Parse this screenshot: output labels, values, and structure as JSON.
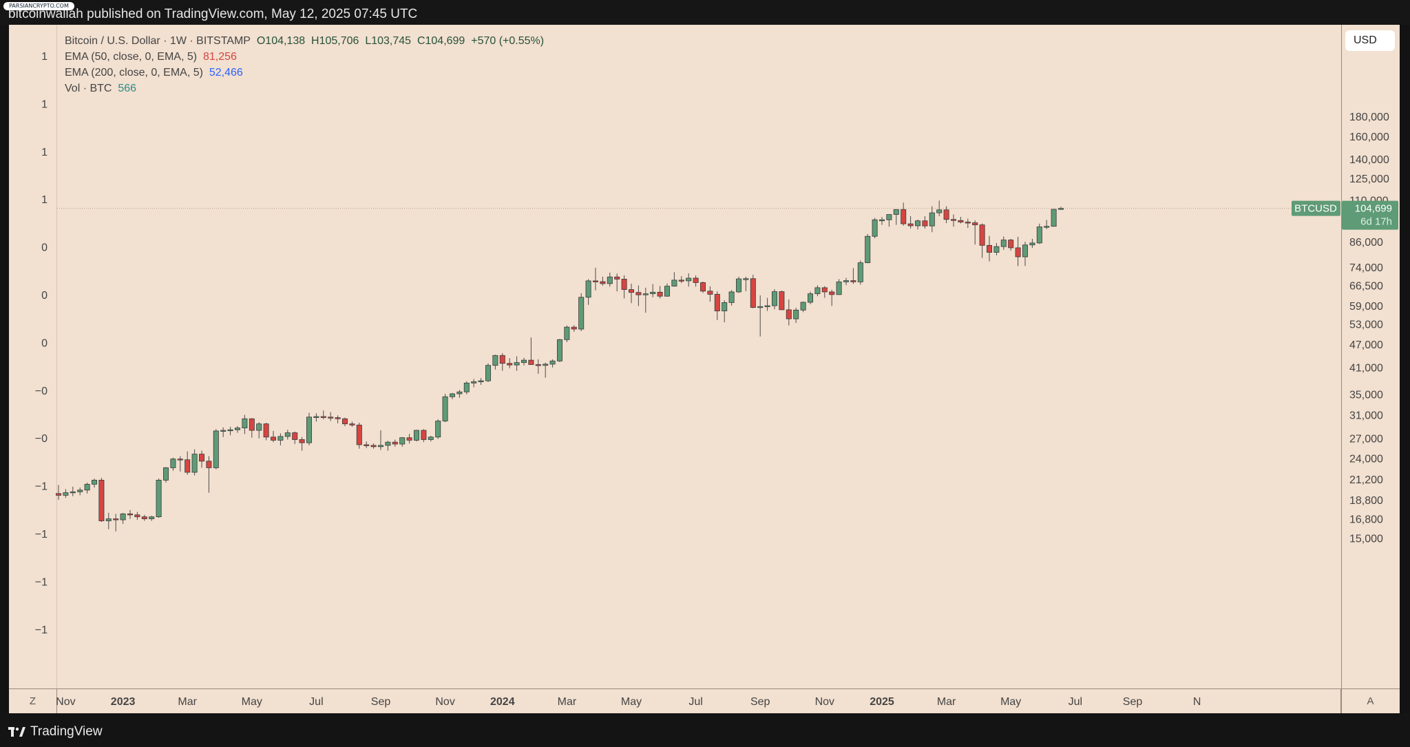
{
  "header": {
    "published": "bitcoinwallah published on TradingView.com, May 12, 2025 07:45 UTC",
    "watermark": "PARSIANCRYPTO.COM"
  },
  "legend": {
    "symbol_line": "Bitcoin / U.S. Dollar · 1W · BITSTAMP",
    "ohlc": "O104,138  H105,706  L103,745  C104,699  +570 (+0.55%)",
    "ema50_label": "EMA (50, close, 0, EMA, 5)",
    "ema50_value": "81,256",
    "ema200_label": "EMA (200, close, 0, EMA, 5)",
    "ema200_value": "52,466",
    "vol_label": "Vol · BTC",
    "vol_value": "566"
  },
  "controls": {
    "currency_button": "USD",
    "left_button": "Z",
    "right_button": "A"
  },
  "footer": {
    "brand": "TradingView"
  },
  "price_tag": {
    "symbol": "BTCUSD",
    "price": "104,699",
    "countdown": "6d 17h"
  },
  "colors": {
    "background": "#f2e0d0",
    "up": "#5e9b76",
    "down": "#d64541",
    "tag": "#5e9b76"
  },
  "chart_data": {
    "type": "candlestick",
    "timeframe": "1W",
    "scale": "log",
    "y_ticks": [
      180000,
      160000,
      140000,
      125000,
      110000,
      86000,
      74000,
      66500,
      59000,
      53000,
      47000,
      41000,
      35000,
      31000,
      27000,
      24000,
      21200,
      18800,
      16800,
      15000
    ],
    "y_tick_labels": [
      "180,000",
      "160,000",
      "140,000",
      "125,000",
      "110,000",
      "86,000",
      "74,000",
      "66,500",
      "59,000",
      "53,000",
      "47,000",
      "41,000",
      "35,000",
      "31,000",
      "27,000",
      "24,000",
      "21,200",
      "18,800",
      "16,800",
      "15,000"
    ],
    "left_axis_labels": [
      "1",
      "1",
      "1",
      "1",
      "0",
      "0",
      "0",
      "−0",
      "−0",
      "−1",
      "−1",
      "−1",
      "−1"
    ],
    "x_labels": [
      "Nov",
      "2023",
      "Mar",
      "May",
      "Jul",
      "Sep",
      "Nov",
      "2024",
      "Mar",
      "May",
      "Jul",
      "Sep",
      "Nov",
      "2025",
      "Mar",
      "May",
      "Jul",
      "Sep",
      "N"
    ],
    "x_label_week_index": [
      1,
      9,
      18,
      27,
      36,
      45,
      54,
      62,
      71,
      80,
      89,
      98,
      107,
      115,
      124,
      133,
      142,
      150,
      159
    ],
    "bold_x_labels": [
      "2023",
      "2024",
      "2025"
    ],
    "candles_ohlc": [
      [
        19500,
        20500,
        18800,
        19300
      ],
      [
        19300,
        20000,
        19000,
        19600
      ],
      [
        19600,
        20300,
        19200,
        19700
      ],
      [
        19700,
        20200,
        19300,
        19900
      ],
      [
        19900,
        20800,
        19500,
        20600
      ],
      [
        20600,
        21300,
        20200,
        21100
      ],
      [
        21100,
        21400,
        16500,
        16600
      ],
      [
        16600,
        17400,
        15800,
        16800
      ],
      [
        16800,
        17300,
        15600,
        16700
      ],
      [
        16700,
        17400,
        16300,
        17300
      ],
      [
        17300,
        17700,
        16800,
        17200
      ],
      [
        17200,
        17500,
        16700,
        17000
      ],
      [
        17000,
        17200,
        16600,
        16800
      ],
      [
        16800,
        17100,
        16600,
        17000
      ],
      [
        17000,
        21300,
        16900,
        21100
      ],
      [
        21100,
        22800,
        20800,
        22700
      ],
      [
        22700,
        24100,
        22300,
        23900
      ],
      [
        23900,
        24300,
        22200,
        23800
      ],
      [
        23800,
        25000,
        21800,
        22100
      ],
      [
        22100,
        25300,
        21700,
        24600
      ],
      [
        24600,
        25100,
        22700,
        23600
      ],
      [
        23600,
        24300,
        19600,
        22700
      ],
      [
        22700,
        28500,
        22500,
        28200
      ],
      [
        28200,
        28800,
        27200,
        28300
      ],
      [
        28300,
        28900,
        27500,
        28400
      ],
      [
        28400,
        29000,
        27900,
        28700
      ],
      [
        28700,
        31000,
        27700,
        30300
      ],
      [
        30300,
        30400,
        27100,
        28300
      ],
      [
        28300,
        29700,
        27000,
        29400
      ],
      [
        29400,
        29600,
        26700,
        27200
      ],
      [
        27200,
        28200,
        26400,
        26700
      ],
      [
        26700,
        27800,
        25900,
        27300
      ],
      [
        27300,
        28400,
        26800,
        27900
      ],
      [
        27900,
        28100,
        26100,
        26800
      ],
      [
        26800,
        27200,
        25100,
        26300
      ],
      [
        26300,
        31400,
        25900,
        30600
      ],
      [
        30600,
        31300,
        29800,
        30700
      ],
      [
        30700,
        31800,
        30200,
        30600
      ],
      [
        30600,
        31500,
        29900,
        30500
      ],
      [
        30500,
        30900,
        29500,
        30300
      ],
      [
        30300,
        30500,
        29000,
        29400
      ],
      [
        29400,
        29800,
        28900,
        29200
      ],
      [
        29200,
        29600,
        25400,
        26000
      ],
      [
        26000,
        26500,
        25500,
        25900
      ],
      [
        25900,
        26200,
        25400,
        25700
      ],
      [
        25700,
        28300,
        25200,
        25900
      ],
      [
        25900,
        26600,
        25100,
        26400
      ],
      [
        26400,
        26800,
        25700,
        26100
      ],
      [
        26100,
        27200,
        25700,
        27100
      ],
      [
        27100,
        27700,
        26200,
        26700
      ],
      [
        26700,
        28400,
        26500,
        28300
      ],
      [
        28300,
        28500,
        26400,
        26800
      ],
      [
        26800,
        27400,
        26500,
        27200
      ],
      [
        27200,
        30200,
        26900,
        29900
      ],
      [
        29900,
        35100,
        29700,
        34500
      ],
      [
        34500,
        35300,
        34000,
        35100
      ],
      [
        35100,
        35900,
        34300,
        35500
      ],
      [
        35500,
        37800,
        35000,
        37400
      ],
      [
        37400,
        38300,
        36500,
        37700
      ],
      [
        37700,
        38500,
        37000,
        37900
      ],
      [
        37900,
        42000,
        37600,
        41500
      ],
      [
        41500,
        44200,
        40500,
        44000
      ],
      [
        44000,
        44600,
        40200,
        42000
      ],
      [
        42000,
        43300,
        40800,
        41600
      ],
      [
        41600,
        43800,
        40200,
        42200
      ],
      [
        42200,
        43400,
        41500,
        42800
      ],
      [
        42800,
        48900,
        41800,
        41700
      ],
      [
        41700,
        43000,
        39500,
        41500
      ],
      [
        41500,
        42200,
        38600,
        41800
      ],
      [
        41800,
        43000,
        41000,
        42600
      ],
      [
        42600,
        48500,
        42300,
        48300
      ],
      [
        48300,
        52500,
        47600,
        52000
      ],
      [
        52000,
        52600,
        50600,
        51400
      ],
      [
        51400,
        63500,
        50800,
        62000
      ],
      [
        62000,
        69000,
        59300,
        68300
      ],
      [
        68300,
        73800,
        64600,
        68000
      ],
      [
        68000,
        70000,
        66400,
        67200
      ],
      [
        67200,
        71700,
        66000,
        69900
      ],
      [
        69900,
        71300,
        64200,
        69000
      ],
      [
        69000,
        70600,
        61600,
        64900
      ],
      [
        64900,
        67200,
        59900,
        63800
      ],
      [
        63800,
        66500,
        58900,
        62900
      ],
      [
        62900,
        65600,
        56600,
        63300
      ],
      [
        63300,
        67000,
        62000,
        63900
      ],
      [
        63900,
        66300,
        61600,
        62400
      ],
      [
        62400,
        67300,
        62200,
        66200
      ],
      [
        66200,
        71900,
        66000,
        68600
      ],
      [
        68600,
        70200,
        67400,
        68300
      ],
      [
        68300,
        71400,
        66000,
        69400
      ],
      [
        69400,
        70500,
        66000,
        67600
      ],
      [
        67600,
        68000,
        63600,
        64300
      ],
      [
        64300,
        66100,
        60400,
        63100
      ],
      [
        63100,
        64200,
        54200,
        57200
      ],
      [
        57200,
        60900,
        53500,
        60100
      ],
      [
        60100,
        64700,
        59000,
        64000
      ],
      [
        64000,
        70000,
        63600,
        69100
      ],
      [
        69100,
        70000,
        64300,
        69200
      ],
      [
        69200,
        70800,
        58100,
        58400
      ],
      [
        58400,
        62700,
        49200,
        58700
      ],
      [
        58700,
        61800,
        57200,
        59000
      ],
      [
        59000,
        65000,
        57800,
        64100
      ],
      [
        64100,
        64500,
        57700,
        57600
      ],
      [
        57600,
        61200,
        52500,
        54600
      ],
      [
        54600,
        58300,
        53300,
        57500
      ],
      [
        57500,
        60500,
        56800,
        60200
      ],
      [
        60200,
        64100,
        59500,
        63300
      ],
      [
        63300,
        66500,
        62400,
        65600
      ],
      [
        65600,
        66200,
        61800,
        64000
      ],
      [
        64000,
        64800,
        58900,
        63000
      ],
      [
        63000,
        69000,
        62900,
        67900
      ],
      [
        67900,
        69500,
        66600,
        68400
      ],
      [
        68400,
        73600,
        67100,
        67900
      ],
      [
        67900,
        77000,
        66800,
        76000
      ],
      [
        76000,
        90000,
        75800,
        88800
      ],
      [
        88800,
        99000,
        87800,
        97900
      ],
      [
        97900,
        99500,
        95000,
        97900
      ],
      [
        97900,
        100000,
        94000,
        101000
      ],
      [
        101000,
        104000,
        95000,
        104000
      ],
      [
        104000,
        108300,
        94600,
        95600
      ],
      [
        95600,
        100000,
        93000,
        94500
      ],
      [
        94500,
        98000,
        92500,
        97300
      ],
      [
        97300,
        100000,
        93000,
        94400
      ],
      [
        94400,
        106000,
        91000,
        102000
      ],
      [
        102000,
        109600,
        100000,
        103800
      ],
      [
        103800,
        106000,
        96000,
        98100
      ],
      [
        98100,
        101000,
        94000,
        97500
      ],
      [
        97500,
        99600,
        95800,
        96600
      ],
      [
        96600,
        98500,
        93300,
        96200
      ],
      [
        96200,
        97600,
        84600,
        95000
      ],
      [
        95000,
        95800,
        78200,
        84200
      ],
      [
        84200,
        89000,
        76600,
        80800
      ],
      [
        80800,
        85400,
        79400,
        83600
      ],
      [
        83600,
        88700,
        82000,
        86900
      ],
      [
        86900,
        87500,
        81600,
        83000
      ],
      [
        83000,
        88500,
        74500,
        78700
      ],
      [
        78700,
        86000,
        74600,
        84400
      ],
      [
        84400,
        87500,
        83000,
        85400
      ],
      [
        85400,
        95700,
        84900,
        93900
      ],
      [
        93900,
        97800,
        92700,
        94200
      ],
      [
        94200,
        104300,
        94000,
        104138
      ],
      [
        104138,
        105706,
        103745,
        104699
      ]
    ]
  }
}
